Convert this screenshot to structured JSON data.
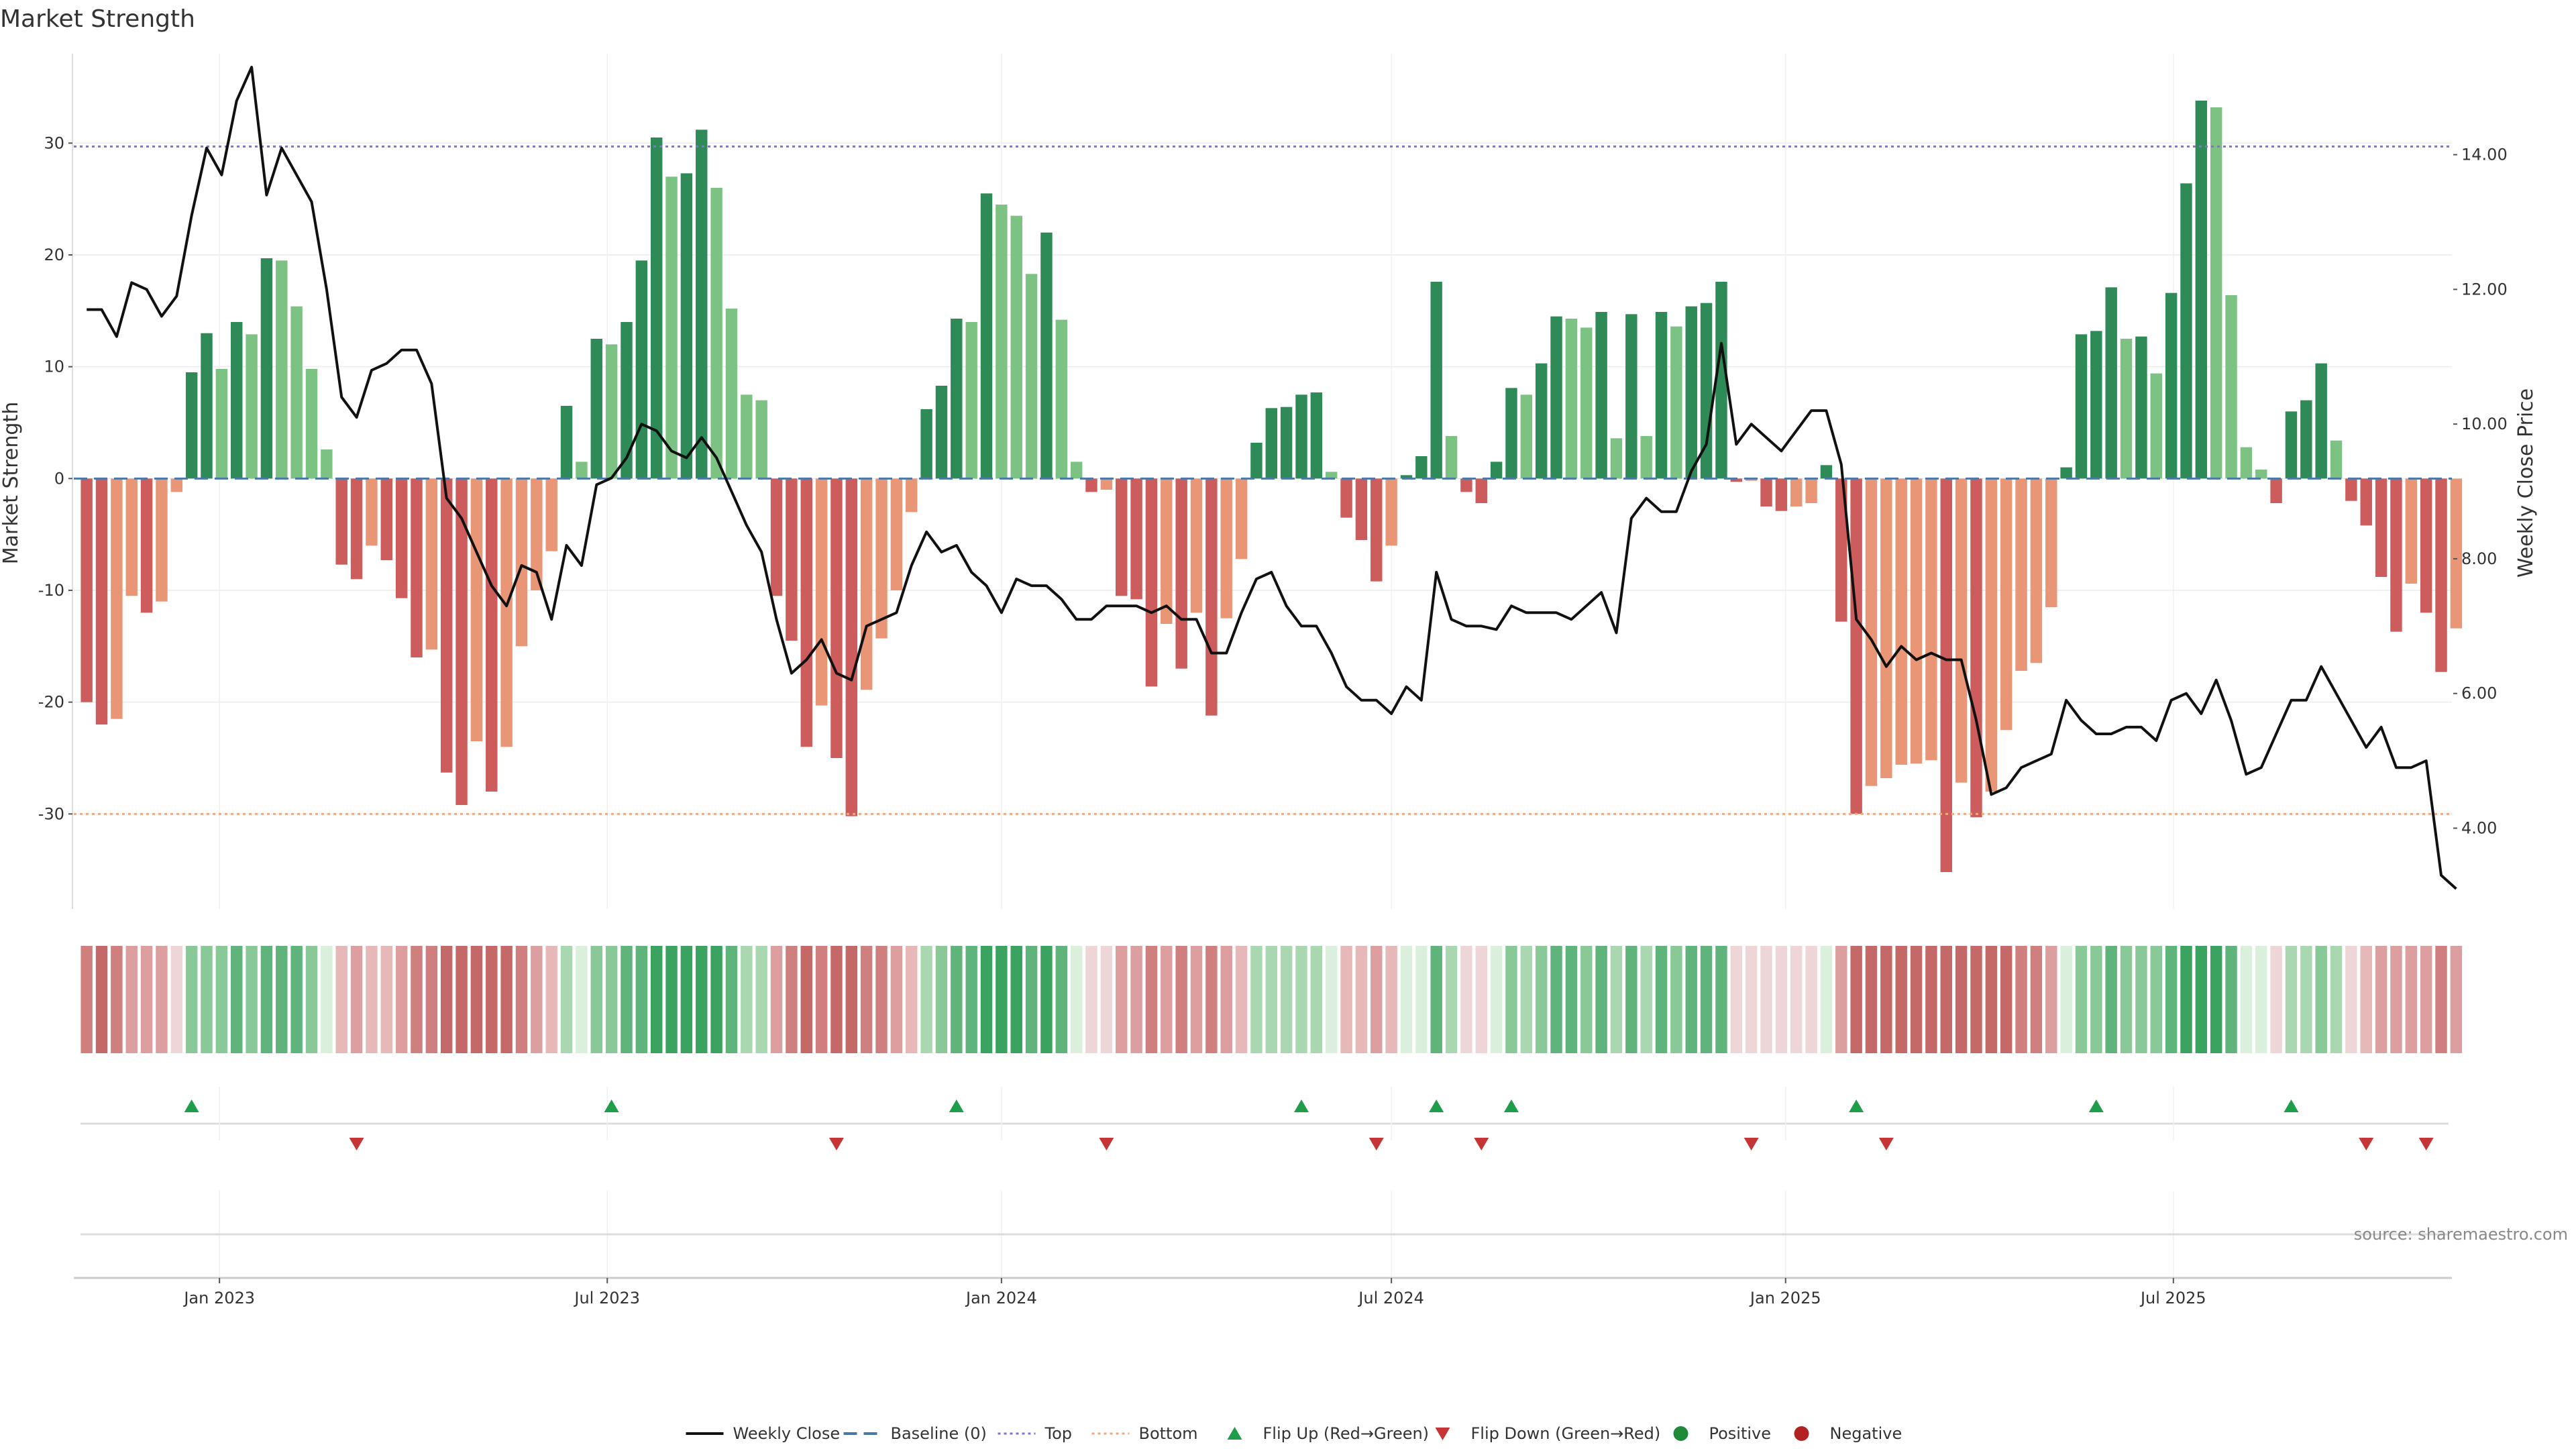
{
  "chart_data": {
    "type": "bar",
    "title": "Market Strength",
    "ylabel": "Market Strength",
    "y2label": "Weekly Close Price",
    "ylim": [
      -38.5,
      38
    ],
    "y2lim": [
      2.8,
      15.5
    ],
    "yticks": [
      30,
      20,
      10,
      0,
      -10,
      -20,
      -30
    ],
    "y2ticks": [
      14.0,
      12.0,
      10.0,
      8.0,
      6.0,
      4.0
    ],
    "top_level": 29.7,
    "bottom_level": -30.0,
    "week_start": "2022-10-31",
    "xlim": [
      "2022-10-25",
      "2025-11-08"
    ],
    "x_ticks": [
      {
        "date": "2023-01-01",
        "label": "Jan 2023"
      },
      {
        "date": "2023-07-01",
        "label": "Jul 2023"
      },
      {
        "date": "2024-01-01",
        "label": "Jan 2024"
      },
      {
        "date": "2024-07-01",
        "label": "Jul 2024"
      },
      {
        "date": "2025-01-01",
        "label": "Jan 2025"
      },
      {
        "date": "2025-07-01",
        "label": "Jul 2025"
      }
    ],
    "strength": [
      -20,
      -22,
      -21.5,
      -10.5,
      -12,
      -11,
      -1.2,
      9.5,
      13,
      9.8,
      14,
      12.9,
      19.7,
      19.5,
      15.4,
      9.8,
      2.6,
      -7.7,
      -9,
      -6,
      -7.3,
      -10.7,
      -16,
      -15.3,
      -26.3,
      -29.2,
      -23.5,
      -28,
      -24,
      -15,
      -10,
      -6.5,
      6.5,
      1.5,
      12.5,
      12,
      14,
      19.5,
      30.5,
      27,
      27.3,
      31.2,
      26,
      15.2,
      7.5,
      7,
      -10.5,
      -14.5,
      -24,
      -20.3,
      -25,
      -30.2,
      -18.9,
      -14.3,
      -10,
      -3,
      6.2,
      8.3,
      14.3,
      14,
      25.5,
      24.5,
      23.5,
      18.3,
      22,
      14.2,
      1.5,
      -1.2,
      -1,
      -10.5,
      -10.8,
      -18.6,
      -13,
      -17,
      -12,
      -21.2,
      -12.5,
      -7.2,
      3.2,
      6.3,
      6.4,
      7.5,
      7.7,
      0.6,
      -3.5,
      -5.5,
      -9.2,
      -6,
      0.3,
      2,
      17.6,
      3.8,
      -1.2,
      -2.2,
      1.5,
      8.1,
      7.5,
      10.3,
      14.5,
      14.3,
      13.5,
      14.9,
      3.6,
      14.7,
      3.8,
      14.9,
      13.6,
      15.4,
      15.7,
      17.6,
      -0.3,
      -0.2,
      -2.5,
      -2.9,
      -2.5,
      -2.2,
      1.2,
      -12.8,
      -30,
      -27.5,
      -26.8,
      -25.6,
      -25.5,
      -25.2,
      -35.2,
      -27.2,
      -30.3,
      -28,
      -22.5,
      -17.2,
      -16.5,
      -11.5,
      1,
      12.9,
      13.2,
      17.1,
      12.5,
      12.7,
      9.4,
      16.6,
      26.4,
      33.8,
      33.2,
      16.4,
      2.8,
      0.8,
      -2.2,
      6,
      7,
      10.3,
      3.4,
      -2,
      -4.2,
      -8.8,
      -13.7,
      -9.4,
      -12,
      -17.3,
      -13.4
    ],
    "price": [
      11.7,
      11.7,
      11.3,
      12.1,
      12,
      11.6,
      11.9,
      13.1,
      14.1,
      13.7,
      14.8,
      15.3,
      13.4,
      14.1,
      13.7,
      13.3,
      12,
      10.4,
      10.1,
      10.8,
      10.9,
      11.1,
      11.1,
      10.6,
      8.9,
      8.6,
      8.1,
      7.6,
      7.3,
      7.9,
      7.8,
      7.1,
      8.2,
      7.9,
      9.1,
      9.2,
      9.5,
      10,
      9.9,
      9.6,
      9.5,
      9.8,
      9.5,
      9.0,
      8.5,
      8.1,
      7.1,
      6.3,
      6.5,
      6.8,
      6.3,
      6.2,
      7,
      7.1,
      7.2,
      7.9,
      8.4,
      8.1,
      8.2,
      7.8,
      7.6,
      7.2,
      7.7,
      7.6,
      7.6,
      7.4,
      7.1,
      7.1,
      7.3,
      7.3,
      7.3,
      7.2,
      7.3,
      7.1,
      7.1,
      6.6,
      6.6,
      7.2,
      7.7,
      7.8,
      7.3,
      7,
      7,
      6.6,
      6.1,
      5.9,
      5.9,
      5.7,
      6.1,
      5.9,
      7.8,
      7.1,
      7,
      7,
      6.95,
      7.3,
      7.2,
      7.2,
      7.2,
      7.1,
      7.3,
      7.5,
      6.9,
      8.6,
      8.9,
      8.7,
      8.7,
      9.3,
      9.7,
      11.2,
      9.7,
      10,
      9.8,
      9.6,
      9.9,
      10.2,
      10.2,
      9.4,
      7.1,
      6.8,
      6.4,
      6.7,
      6.5,
      6.6,
      6.5,
      6.5,
      5.6,
      4.5,
      4.6,
      4.9,
      5,
      5.1,
      5.9,
      5.6,
      5.4,
      5.4,
      5.5,
      5.5,
      5.3,
      5.9,
      6,
      5.7,
      6.2,
      5.6,
      4.8,
      4.9,
      5.4,
      5.9,
      5.9,
      6.4,
      6,
      5.6,
      5.2,
      5.5,
      4.9,
      4.9,
      5,
      3.3,
      3.1
    ],
    "flips_up": [
      "2022-12-19",
      "2023-07-03",
      "2023-12-11",
      "2024-05-20",
      "2024-07-22",
      "2024-08-26",
      "2025-02-03",
      "2025-05-26",
      "2025-08-25"
    ],
    "flips_down": [
      "2023-03-06",
      "2023-10-16",
      "2024-02-19",
      "2024-06-24",
      "2024-08-12",
      "2024-12-16",
      "2025-02-17",
      "2025-09-29",
      "2025-10-27"
    ],
    "heat_colors": {
      "pos": [
        "#daf0dc",
        "#a9d8b0",
        "#88c997",
        "#5fb47c",
        "#3aa35f"
      ],
      "neg": [
        "#eed6d6",
        "#e6b8b8",
        "#dc9e9e",
        "#d07f7f",
        "#c46868"
      ]
    },
    "bar_colors": {
      "pos_dark": "#2e8b57",
      "pos_light": "#7cc383",
      "neg_dark": "#cd5c5c",
      "neg_light": "#e99677"
    },
    "line_color": "#111111",
    "top_color": "#8a6fd1",
    "bottom_color": "#f2a97e",
    "baseline_color": "#4a78a8",
    "flip_up_color": "#1e9e4a",
    "flip_down_color": "#c63535",
    "legend": [
      {
        "key": "line",
        "label": "Weekly Close"
      },
      {
        "key": "baseline",
        "label": "Baseline (0)"
      },
      {
        "key": "top",
        "label": "Top"
      },
      {
        "key": "bottom",
        "label": "Bottom"
      },
      {
        "key": "flipup",
        "label": "Flip Up (Red→Green)"
      },
      {
        "key": "flipdown",
        "label": "Flip Down (Green→Red)"
      },
      {
        "key": "positive",
        "label": "Positive"
      },
      {
        "key": "negative",
        "label": "Negative"
      }
    ],
    "source": "source: sharemaestro.com"
  }
}
